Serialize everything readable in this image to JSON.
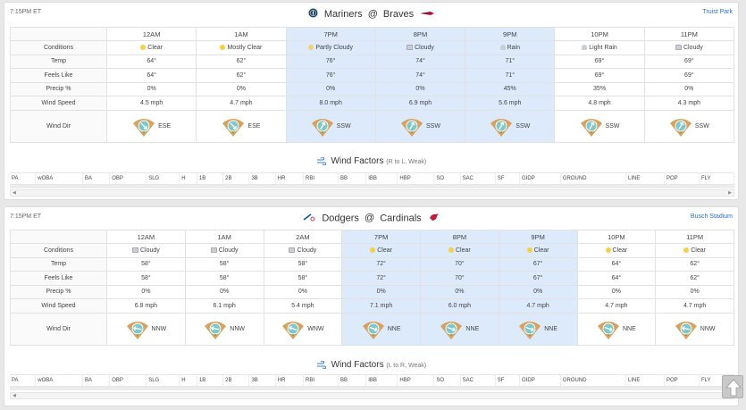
{
  "games": [
    {
      "time": "7:15PM ET",
      "away_team": "Mariners",
      "at": "@",
      "home_team": "Braves",
      "venue": "Truist Park",
      "hours": [
        "12AM",
        "1AM",
        "7PM",
        "8PM",
        "9PM",
        "10PM",
        "11PM"
      ],
      "highlight": [
        false,
        false,
        true,
        true,
        true,
        false,
        false
      ],
      "rows": {
        "conditions_label": "Conditions",
        "temp_label": "Temp",
        "feels_label": "Feels Like",
        "precip_label": "Precip %",
        "wind_speed_label": "Wind Speed",
        "wind_dir_label": "Wind Dir"
      },
      "conditions": [
        "Clear",
        "Mostly Clear",
        "Partly Cloudy",
        "Cloudy",
        "Rain",
        "Light Rain",
        "Cloudy"
      ],
      "condition_icons": [
        "sun-icon",
        "sun-icon",
        "partly-cloudy-icon",
        "cloud-icon",
        "rain-icon",
        "light-rain-icon",
        "cloud-icon"
      ],
      "temp": [
        "64°",
        "62°",
        "76°",
        "74°",
        "71°",
        "69°",
        "69°"
      ],
      "feels": [
        "64°",
        "62°",
        "76°",
        "74°",
        "71°",
        "69°",
        "69°"
      ],
      "precip": [
        "0%",
        "0%",
        "0%",
        "0%",
        "45%",
        "35%",
        "0%"
      ],
      "wind_speed": [
        "4.5 mph",
        "4.7 mph",
        "8.0 mph",
        "6.9 mph",
        "5.6 mph",
        "4.8 mph",
        "4.3 mph"
      ],
      "wind_dir": [
        "ESE",
        "ESE",
        "SSW",
        "SSW",
        "SSW",
        "SSW",
        "SSW"
      ],
      "wind_arrow_deg": [
        135,
        135,
        30,
        30,
        30,
        30,
        30
      ],
      "wind_factors_title": "Wind Factors",
      "wind_factors_sub": "(R to L, Weak)"
    },
    {
      "time": "7:15PM ET",
      "away_team": "Dodgers",
      "at": "@",
      "home_team": "Cardinals",
      "venue": "Busch Stadium",
      "hours": [
        "12AM",
        "1AM",
        "2AM",
        "7PM",
        "8PM",
        "9PM",
        "10PM",
        "11PM"
      ],
      "highlight": [
        false,
        false,
        false,
        true,
        true,
        true,
        false,
        false
      ],
      "rows": {
        "conditions_label": "Conditions",
        "temp_label": "Temp",
        "feels_label": "Feels Like",
        "precip_label": "Precip %",
        "wind_speed_label": "Wind Speed",
        "wind_dir_label": "Wind Dir"
      },
      "conditions": [
        "Cloudy",
        "Cloudy",
        "Cloudy",
        "Clear",
        "Clear",
        "Clear",
        "Clear",
        "Clear"
      ],
      "condition_icons": [
        "cloud-icon",
        "cloud-icon",
        "cloud-icon",
        "sun-icon",
        "sun-icon",
        "sun-icon",
        "sun-icon",
        "sun-icon"
      ],
      "temp": [
        "58°",
        "58°",
        "58°",
        "72°",
        "70°",
        "67°",
        "64°",
        "62°"
      ],
      "feels": [
        "58°",
        "58°",
        "58°",
        "72°",
        "70°",
        "67°",
        "64°",
        "62°"
      ],
      "precip": [
        "0%",
        "0%",
        "0%",
        "0%",
        "0%",
        "0%",
        "0%",
        "0%"
      ],
      "wind_speed": [
        "6.8 mph",
        "6.1 mph",
        "5.4 mph",
        "7.1 mph",
        "6.0 mph",
        "4.7 mph",
        "4.7 mph",
        "4.7 mph"
      ],
      "wind_dir": [
        "NNW",
        "NNW",
        "WNW",
        "NNE",
        "NNE",
        "NNE",
        "NNE",
        "NNW"
      ],
      "wind_arrow_deg": [
        -80,
        -80,
        -70,
        110,
        110,
        110,
        110,
        -80
      ],
      "wind_factors_title": "Wind Factors",
      "wind_factors_sub": "(L to R, Weak)"
    }
  ],
  "factor_columns": [
    "PA",
    "wOBA",
    "BA",
    "OBP",
    "SLG",
    "H",
    "1B",
    "2B",
    "3B",
    "HR",
    "RBI",
    "BB",
    "IBB",
    "HBP",
    "SO",
    "SAC",
    "SF",
    "GIDP",
    "GROUND",
    "LINE",
    "POP",
    "FLY"
  ],
  "factor_widths": [
    30,
    54,
    31,
    42,
    38,
    20,
    30,
    30,
    30,
    32,
    40,
    32,
    36,
    42,
    30,
    40,
    28,
    47,
    75,
    44,
    40,
    40
  ],
  "colors": {
    "highlight": "#dceafb",
    "link": "#2a6fcf",
    "field_dirt": "#d7a15e",
    "field_grass": "#3a8a48",
    "arrow_circle": "#7fc7c9"
  },
  "scroll_top_label": "⇧"
}
